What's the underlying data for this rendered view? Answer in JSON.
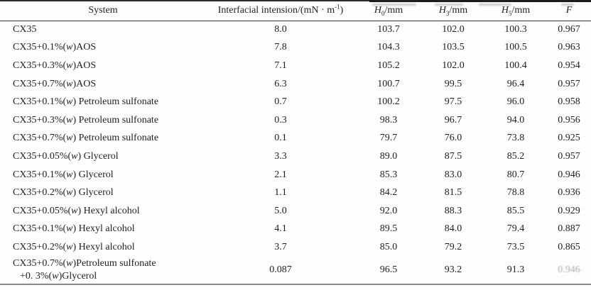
{
  "table": {
    "headers": {
      "system": "System",
      "ift_pre": "Interfacial intension/(mN · m",
      "ift_sup": "-1",
      "ift_post": ")",
      "h_sym": "H",
      "h0_sub": "0",
      "h3_sub": "3",
      "h5_sub": "5",
      "h_unit": "/mm",
      "f": "F"
    },
    "rows": [
      {
        "sys_pre": "CX35",
        "sys_w": "",
        "sys_post": "",
        "ift": "8.0",
        "h0": "103.7",
        "h3": "102.0",
        "h5": "100.3",
        "f": "0.967"
      },
      {
        "sys_pre": "CX35+0.1%(",
        "sys_w": "w",
        "sys_post": ")AOS",
        "ift": "7.8",
        "h0": "104.3",
        "h3": "103.5",
        "h5": "100.5",
        "f": "0.963"
      },
      {
        "sys_pre": "CX35+0.3%(",
        "sys_w": "w",
        "sys_post": ")AOS",
        "ift": "7.1",
        "h0": "105.2",
        "h3": "102.0",
        "h5": "100.4",
        "f": "0.954"
      },
      {
        "sys_pre": "CX35+0.7%(",
        "sys_w": "w",
        "sys_post": ")AOS",
        "ift": "6.3",
        "h0": "100.7",
        "h3": "99.5",
        "h5": "96.4",
        "f": "0.957"
      },
      {
        "sys_pre": "CX35+0.1%(",
        "sys_w": "w",
        "sys_post": ") Petroleum sulfonate",
        "ift": "0.7",
        "h0": "100.2",
        "h3": "97.5",
        "h5": "96.0",
        "f": "0.958"
      },
      {
        "sys_pre": "CX35+0.3%(",
        "sys_w": "w",
        "sys_post": ") Petroleum sulfonate",
        "ift": "0.3",
        "h0": "98.3",
        "h3": "96.7",
        "h5": "94.0",
        "f": "0.956"
      },
      {
        "sys_pre": "CX35+0.7%(",
        "sys_w": "w",
        "sys_post": ") Petroleum sulfonate",
        "ift": "0.1",
        "h0": "79.7",
        "h3": "76.0",
        "h5": "73.8",
        "f": "0.925"
      },
      {
        "sys_pre": "CX35+0.05%(",
        "sys_w": "w",
        "sys_post": ") Glycerol",
        "ift": "3.3",
        "h0": "89.0",
        "h3": "87.5",
        "h5": "85.2",
        "f": "0.957"
      },
      {
        "sys_pre": "CX35+0.1%(",
        "sys_w": "w",
        "sys_post": ") Glycerol",
        "ift": "2.1",
        "h0": "85.3",
        "h3": "83.0",
        "h5": "80.7",
        "f": "0.946"
      },
      {
        "sys_pre": "CX35+0.2%(",
        "sys_w": "w",
        "sys_post": ") Glycerol",
        "ift": "1.1",
        "h0": "84.2",
        "h3": "81.5",
        "h5": "78.8",
        "f": "0.936"
      },
      {
        "sys_pre": "CX35+0.05%(",
        "sys_w": "w",
        "sys_post": ") Hexyl alcohol",
        "ift": "5.0",
        "h0": "92.0",
        "h3": "88.3",
        "h5": "85.5",
        "f": "0.929"
      },
      {
        "sys_pre": "CX35+0.1%(",
        "sys_w": "w",
        "sys_post": ") Hexyl alcohol",
        "ift": "4.1",
        "h0": "89.5",
        "h3": "84.0",
        "h5": "79.4",
        "f": "0.887"
      },
      {
        "sys_pre": "CX35+0.2%(",
        "sys_w": "w",
        "sys_post": ") Hexyl alcohol",
        "ift": "3.7",
        "h0": "85.0",
        "h3": "79.2",
        "h5": "73.5",
        "f": "0.865"
      },
      {
        "sys_pre": "CX35+0.7%(",
        "sys_w": "w",
        "sys_post": ")Petroleum sulfonate",
        "sys2_pre": "+0. 3%(",
        "sys2_w": "w",
        "sys2_post": ")Glycerol",
        "ift": "0.087",
        "h0": "96.5",
        "h3": "93.2",
        "h5": "91.3",
        "f": "0.946"
      }
    ]
  }
}
